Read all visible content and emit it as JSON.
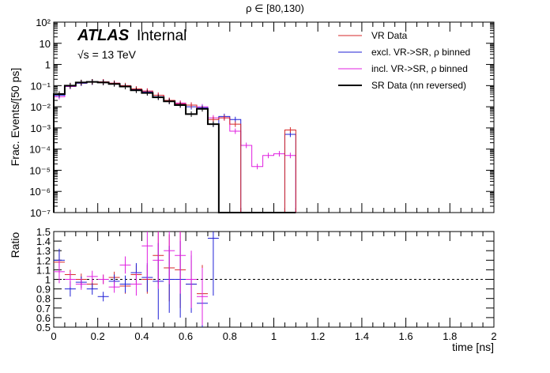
{
  "chart_data": [
    {
      "type": "line",
      "panel": "main",
      "title": "ρ ∈ [80,130)",
      "ylabel": "Frac. Events/[50 ps]",
      "xlabel": "",
      "xlim": [
        0,
        2
      ],
      "ylim": [
        1e-07,
        100
      ],
      "yscale": "log",
      "ytick_labels": [
        "10⁻⁷",
        "10⁻⁶",
        "10⁻⁵",
        "10⁻⁴",
        "10⁻³",
        "10⁻²",
        "10⁻¹",
        "1",
        "10",
        "10²"
      ],
      "atlas_label": "ATLAS",
      "atlas_sub": "Internal",
      "energy_label": "√s = 13 TeV",
      "legend_position": "top-right",
      "legend": [
        "VR Data",
        "excl. VR->SR, ρ binned",
        "incl. VR->SR, ρ binned",
        "SR Data (nn reversed)"
      ],
      "colors": [
        "#d62728",
        "#1f1fd6",
        "#e020e0",
        "#000000"
      ],
      "x_edges": [
        0,
        0.05,
        0.1,
        0.15,
        0.2,
        0.25,
        0.3,
        0.35,
        0.4,
        0.45,
        0.5,
        0.55,
        0.6,
        0.65,
        0.7,
        0.75,
        0.8,
        0.85,
        0.9,
        0.95,
        1.0,
        1.05,
        1.1
      ],
      "series": [
        {
          "name": "VR Data",
          "values": [
            0.04,
            0.1,
            0.14,
            0.15,
            0.15,
            0.13,
            0.1,
            0.07,
            0.055,
            0.035,
            0.02,
            0.014,
            0.012,
            0.008,
            0.0025,
            0.003,
            0.0015,
            null,
            null,
            null,
            null,
            0.0008
          ]
        },
        {
          "name": "excl. VR->SR, ρ binned",
          "values": [
            0.035,
            0.095,
            0.13,
            0.145,
            0.145,
            0.125,
            0.095,
            0.065,
            0.05,
            0.03,
            0.018,
            0.013,
            0.01,
            0.009,
            0.0015,
            0.0035,
            0.0025,
            null,
            null,
            null,
            null,
            0.0005
          ]
        },
        {
          "name": "incl. VR->SR, ρ binned",
          "values": [
            0.03,
            0.09,
            0.13,
            0.15,
            0.15,
            0.13,
            0.1,
            0.07,
            0.055,
            0.035,
            0.02,
            0.015,
            0.012,
            0.01,
            0.003,
            0.003,
            0.0007,
            0.00015,
            1.5e-05,
            5e-05,
            6e-05,
            5e-05
          ]
        },
        {
          "name": "SR Data (nn reversed)",
          "values": [
            0.04,
            0.1,
            0.14,
            0.15,
            0.14,
            0.12,
            0.09,
            0.06,
            0.045,
            0.028,
            0.018,
            0.012,
            0.0045,
            0.008,
            0.0015,
            null,
            null,
            null,
            null,
            null,
            null,
            null
          ]
        }
      ]
    },
    {
      "type": "scatter",
      "panel": "ratio",
      "xlabel": "time [ns]",
      "ylabel": "Ratio",
      "xlim": [
        0,
        2
      ],
      "ylim": [
        0.5,
        1.5
      ],
      "xtick_labels": [
        "0",
        "0.2",
        "0.4",
        "0.6",
        "0.8",
        "1",
        "1.2",
        "1.4",
        "1.6",
        "1.8",
        "2"
      ],
      "ytick_labels": [
        "0.5",
        "0.6",
        "0.7",
        "0.8",
        "0.9",
        "1",
        "1.1",
        "1.2",
        "1.3",
        "1.4",
        "1.5"
      ],
      "reference_line": 1,
      "series": [
        {
          "name": "VR Data",
          "points": [
            [
              0.025,
              1.18,
              0.12
            ],
            [
              0.075,
              1.05,
              0.05
            ],
            [
              0.125,
              1.0,
              0.06
            ],
            [
              0.175,
              0.95,
              0.05
            ],
            [
              0.225,
              1.0,
              0.05
            ],
            [
              0.275,
              1.02,
              0.06
            ],
            [
              0.325,
              0.93,
              0.08
            ],
            [
              0.375,
              1.05,
              0.1
            ],
            [
              0.425,
              1.0,
              0.15
            ],
            [
              0.475,
              1.25,
              0.3
            ],
            [
              0.525,
              1.12,
              0.35
            ],
            [
              0.575,
              1.1,
              0.4
            ],
            [
              0.625,
              0.95,
              0.25
            ],
            [
              0.675,
              0.85,
              0.3
            ]
          ]
        },
        {
          "name": "excl. VR->SR, ρ binned",
          "points": [
            [
              0.025,
              1.2,
              0.12
            ],
            [
              0.075,
              0.9,
              0.08
            ],
            [
              0.125,
              0.97,
              0.06
            ],
            [
              0.175,
              0.9,
              0.06
            ],
            [
              0.225,
              0.82,
              0.05
            ],
            [
              0.275,
              0.98,
              0.07
            ],
            [
              0.325,
              0.95,
              0.09
            ],
            [
              0.375,
              1.07,
              0.1
            ],
            [
              0.425,
              1.02,
              0.15
            ],
            [
              0.475,
              0.98,
              0.4
            ],
            [
              0.525,
              1.0,
              0.35
            ],
            [
              0.575,
              1.0,
              0.4
            ],
            [
              0.625,
              0.95,
              0.3
            ],
            [
              0.675,
              0.75,
              0.3
            ],
            [
              0.725,
              1.43,
              0.6
            ]
          ]
        },
        {
          "name": "incl. VR->SR, ρ binned",
          "points": [
            [
              0.025,
              1.08,
              0.12
            ],
            [
              0.075,
              1.0,
              0.08
            ],
            [
              0.125,
              0.95,
              0.06
            ],
            [
              0.175,
              1.03,
              0.06
            ],
            [
              0.225,
              1.0,
              0.05
            ],
            [
              0.275,
              0.92,
              0.06
            ],
            [
              0.325,
              1.15,
              0.09
            ],
            [
              0.375,
              0.95,
              0.12
            ],
            [
              0.425,
              1.35,
              0.35
            ],
            [
              0.475,
              1.2,
              0.3
            ],
            [
              0.525,
              1.3,
              0.35
            ],
            [
              0.575,
              1.25,
              0.4
            ],
            [
              0.625,
              1.0,
              0.3
            ],
            [
              0.675,
              0.82,
              0.3
            ]
          ]
        }
      ]
    }
  ]
}
